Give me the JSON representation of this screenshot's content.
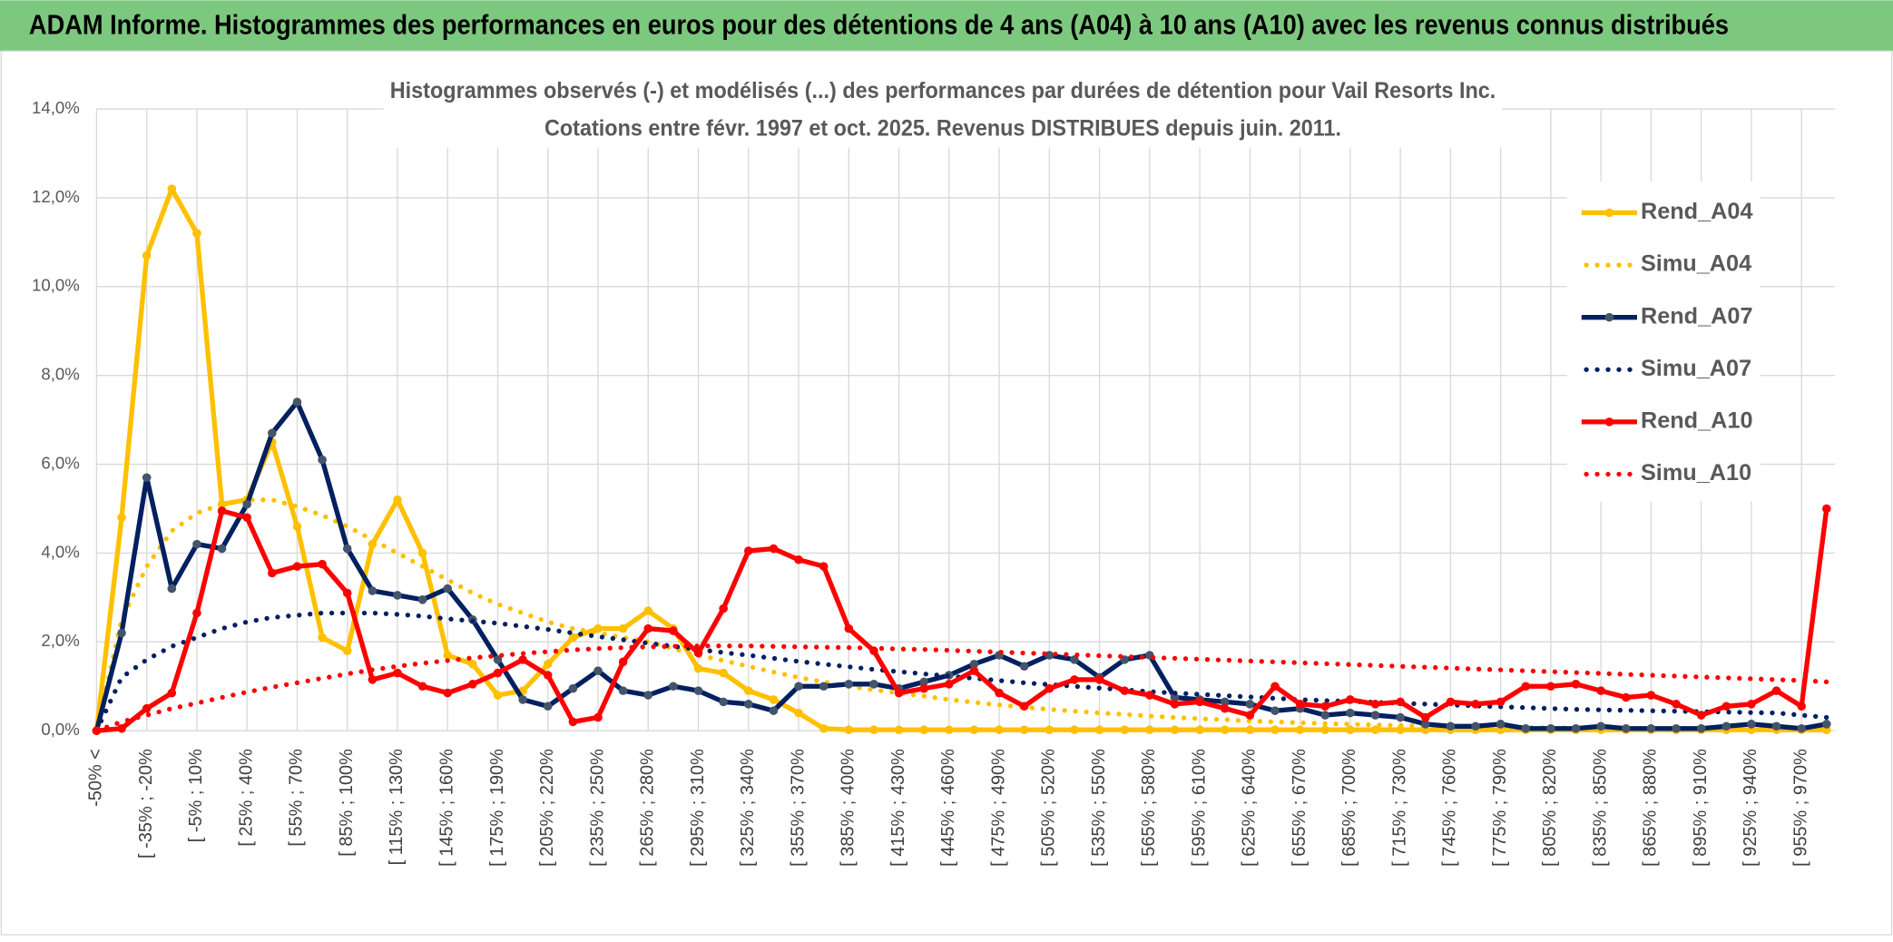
{
  "header": {
    "title": "ADAM Informe. Histogrammes des performances en euros pour des détentions de 4 ans (A04) à 10 ans (A10) avec les revenus connus distribués"
  },
  "chart_data": {
    "type": "line",
    "title": "Histogrammes observés (-) et modélisés (...) des performances par durées de détention pour Vail Resorts Inc.",
    "subtitle": "Cotations entre févr. 1997 et oct. 2025. Revenus DISTRIBUES depuis juin. 2011.",
    "categories": [
      "-50% <",
      null,
      "[ -35% ; -20%",
      null,
      "[ -5% ; 10%",
      null,
      "[ 25% ; 40%",
      null,
      "[ 55% ; 70%",
      null,
      "[ 85% ; 100%",
      null,
      "[ 115% ; 130%",
      null,
      "[ 145% ; 160%",
      null,
      "[ 175% ; 190%",
      null,
      "[ 205% ; 220%",
      null,
      "[ 235% ; 250%",
      null,
      "[ 265% ; 280%",
      null,
      "[ 295% ; 310%",
      null,
      "[ 325% ; 340%",
      null,
      "[ 355% ; 370%",
      null,
      "[ 385% ; 400%",
      null,
      "[ 415% ; 430%",
      null,
      "[ 445% ; 460%",
      null,
      "[ 475% ; 490%",
      null,
      "[ 505% ; 520%",
      null,
      "[ 535% ; 550%",
      null,
      "[ 565% ; 580%",
      null,
      "[ 595% ; 610%",
      null,
      "[ 625% ; 640%",
      null,
      "[ 655% ; 670%",
      null,
      "[ 685% ; 700%",
      null,
      "[ 715% ; 730%",
      null,
      "[ 745% ; 760%",
      null,
      "[ 775% ; 790%",
      null,
      "[ 805% ; 820%",
      null,
      "[ 835% ; 850%",
      null,
      "[ 865% ; 880%",
      null,
      "[ 895% ; 910%",
      null,
      "[ 925% ; 940%",
      null,
      "[ 955% ; 970%",
      null
    ],
    "ylim": [
      0,
      14
    ],
    "yticks": [
      {
        "value": 0,
        "label": "0,0%"
      },
      {
        "value": 2,
        "label": "2,0%"
      },
      {
        "value": 4,
        "label": "4,0%"
      },
      {
        "value": 6,
        "label": "6,0%"
      },
      {
        "value": 8,
        "label": "8,0%"
      },
      {
        "value": 10,
        "label": "10,0%"
      },
      {
        "value": 12,
        "label": "12,0%"
      },
      {
        "value": 14,
        "label": "14,0%"
      }
    ],
    "grid": true,
    "legend": "right",
    "series": [
      {
        "name": "Rend_A04",
        "color": "#ffc000",
        "style": "solid",
        "marker": true,
        "values": [
          0,
          4.8,
          10.7,
          12.2,
          11.2,
          5.1,
          5.2,
          6.5,
          4.6,
          2.1,
          1.8,
          4.2,
          5.2,
          4.0,
          1.7,
          1.5,
          0.8,
          0.9,
          1.5,
          2.1,
          2.3,
          2.3,
          2.7,
          2.3,
          1.4,
          1.3,
          0.9,
          0.7,
          0.4,
          0.05,
          0.02,
          0.02,
          0.02,
          0.02,
          0.02,
          0.02,
          0.02,
          0.02,
          0.02,
          0.02,
          0.02,
          0.02,
          0.02,
          0.02,
          0.02,
          0.02,
          0.02,
          0.02,
          0.02,
          0.02,
          0.02,
          0.02,
          0.02,
          0.02,
          0.02,
          0.02,
          0.02,
          0.02,
          0.02,
          0.02,
          0.02,
          0.02,
          0.02,
          0.02,
          0.02,
          0.02,
          0.02,
          0.02,
          0.02,
          0.02
        ]
      },
      {
        "name": "Simu_A04",
        "color": "#ffc000",
        "style": "dotted",
        "marker": false,
        "values": [
          0,
          2.5,
          3.7,
          4.5,
          4.9,
          5.1,
          5.2,
          5.2,
          5.05,
          4.85,
          4.6,
          4.3,
          4.0,
          3.7,
          3.4,
          3.1,
          2.85,
          2.65,
          2.45,
          2.3,
          2.2,
          2.1,
          2.0,
          1.85,
          1.7,
          1.58,
          1.45,
          1.32,
          1.2,
          1.1,
          1.0,
          0.92,
          0.85,
          0.78,
          0.7,
          0.64,
          0.58,
          0.53,
          0.48,
          0.44,
          0.4,
          0.37,
          0.33,
          0.3,
          0.27,
          0.25,
          0.22,
          0.2,
          0.18,
          0.16,
          0.15,
          0.13,
          0.12,
          0.11,
          0.1,
          0.09,
          0.08,
          0.07,
          0.07,
          0.06,
          0.05,
          0.05,
          0.04,
          0.04,
          0.03,
          0.03,
          0.03,
          0.02,
          0.02,
          0.02
        ]
      },
      {
        "name": "Rend_A07",
        "color": "#002060",
        "style": "solid",
        "marker": true,
        "values": [
          0,
          2.2,
          5.7,
          3.2,
          4.2,
          4.1,
          5.1,
          6.7,
          7.4,
          6.1,
          4.1,
          3.15,
          3.05,
          2.95,
          3.2,
          2.5,
          1.6,
          0.7,
          0.55,
          0.95,
          1.35,
          0.9,
          0.8,
          1.0,
          0.9,
          0.65,
          0.6,
          0.45,
          1.0,
          1.0,
          1.05,
          1.05,
          0.95,
          1.1,
          1.25,
          1.5,
          1.7,
          1.45,
          1.7,
          1.6,
          1.2,
          1.6,
          1.7,
          0.75,
          0.7,
          0.65,
          0.6,
          0.45,
          0.5,
          0.35,
          0.4,
          0.35,
          0.3,
          0.15,
          0.1,
          0.1,
          0.15,
          0.05,
          0.05,
          0.05,
          0.1,
          0.05,
          0.05,
          0.05,
          0.05,
          0.1,
          0.15,
          0.1,
          0.05,
          0.15
        ]
      },
      {
        "name": "Simu_A07",
        "color": "#002060",
        "style": "dotted",
        "marker": false,
        "values": [
          0,
          1.2,
          1.6,
          1.9,
          2.1,
          2.3,
          2.45,
          2.55,
          2.6,
          2.65,
          2.65,
          2.65,
          2.62,
          2.58,
          2.52,
          2.47,
          2.42,
          2.35,
          2.28,
          2.2,
          2.12,
          2.05,
          1.97,
          1.9,
          1.83,
          1.76,
          1.7,
          1.63,
          1.56,
          1.5,
          1.44,
          1.38,
          1.33,
          1.28,
          1.23,
          1.18,
          1.13,
          1.08,
          1.04,
          1.0,
          0.96,
          0.92,
          0.88,
          0.85,
          0.82,
          0.79,
          0.76,
          0.73,
          0.7,
          0.68,
          0.66,
          0.64,
          0.62,
          0.6,
          0.58,
          0.56,
          0.54,
          0.52,
          0.5,
          0.48,
          0.47,
          0.46,
          0.45,
          0.44,
          0.43,
          0.42,
          0.41,
          0.4,
          0.35,
          0.3
        ]
      },
      {
        "name": "Rend_A10",
        "color": "#ff0000",
        "style": "solid",
        "marker": true,
        "values": [
          0,
          0.05,
          0.5,
          0.85,
          2.65,
          4.95,
          4.8,
          3.55,
          3.7,
          3.75,
          3.1,
          1.15,
          1.3,
          1.0,
          0.85,
          1.05,
          1.3,
          1.6,
          1.25,
          0.2,
          0.3,
          1.55,
          2.3,
          2.25,
          1.75,
          2.75,
          4.05,
          4.1,
          3.85,
          3.7,
          2.3,
          1.8,
          0.85,
          0.95,
          1.05,
          1.35,
          0.85,
          0.55,
          0.95,
          1.15,
          1.15,
          0.9,
          0.8,
          0.6,
          0.65,
          0.5,
          0.35,
          1.0,
          0.6,
          0.55,
          0.7,
          0.6,
          0.65,
          0.3,
          0.65,
          0.6,
          0.65,
          1.0,
          1.0,
          1.05,
          0.9,
          0.75,
          0.8,
          0.6,
          0.35,
          0.55,
          0.6,
          0.9,
          0.55,
          5.0
        ]
      },
      {
        "name": "Simu_A10",
        "color": "#ff0000",
        "style": "dotted",
        "marker": false,
        "values": [
          0,
          0.2,
          0.35,
          0.5,
          0.62,
          0.75,
          0.87,
          0.98,
          1.08,
          1.18,
          1.28,
          1.37,
          1.45,
          1.52,
          1.58,
          1.64,
          1.69,
          1.74,
          1.78,
          1.82,
          1.85,
          1.87,
          1.89,
          1.9,
          1.91,
          1.91,
          1.91,
          1.9,
          1.89,
          1.88,
          1.87,
          1.86,
          1.84,
          1.83,
          1.81,
          1.79,
          1.77,
          1.75,
          1.73,
          1.71,
          1.69,
          1.67,
          1.65,
          1.63,
          1.61,
          1.59,
          1.57,
          1.55,
          1.53,
          1.51,
          1.49,
          1.47,
          1.45,
          1.43,
          1.41,
          1.39,
          1.37,
          1.35,
          1.33,
          1.31,
          1.29,
          1.27,
          1.25,
          1.23,
          1.21,
          1.19,
          1.17,
          1.15,
          1.13,
          1.1
        ]
      }
    ]
  }
}
